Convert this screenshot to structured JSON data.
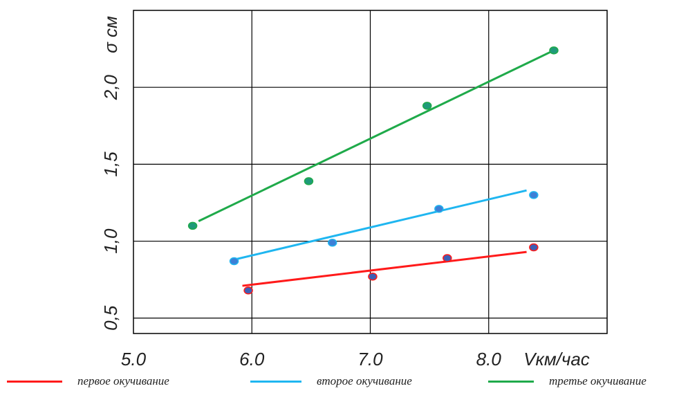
{
  "chart_data": {
    "type": "scatter",
    "title": "",
    "xlabel": "Vкм/час",
    "ylabel": "σ см",
    "xlim": [
      5.0,
      9.0
    ],
    "ylim": [
      0.4,
      2.5
    ],
    "x_ticks": [
      {
        "value": 5.0,
        "label": "5.0"
      },
      {
        "value": 6.0,
        "label": "6.0"
      },
      {
        "value": 7.0,
        "label": "7.0"
      },
      {
        "value": 8.0,
        "label": "8.0"
      }
    ],
    "y_ticks": [
      {
        "value": 0.5,
        "label": "0,5"
      },
      {
        "value": 1.0,
        "label": "1,0"
      },
      {
        "value": 1.5,
        "label": "1,5"
      },
      {
        "value": 2.0,
        "label": "2,0"
      }
    ],
    "grid": true,
    "legend_position": "bottom",
    "series": [
      {
        "name": "первое окучивание",
        "color": "#ff1a1a",
        "point_color": "#3d5fb5",
        "points": [
          [
            5.97,
            0.68
          ],
          [
            7.02,
            0.77
          ],
          [
            7.65,
            0.89
          ],
          [
            8.38,
            0.96
          ]
        ],
        "trend": [
          [
            5.92,
            0.71
          ],
          [
            8.32,
            0.93
          ]
        ]
      },
      {
        "name": "второе окучивание",
        "color": "#1fb6f0",
        "point_color": "#3d7fd6",
        "points": [
          [
            5.85,
            0.87
          ],
          [
            6.68,
            0.99
          ],
          [
            7.58,
            1.21
          ],
          [
            8.38,
            1.3
          ]
        ],
        "trend": [
          [
            5.85,
            0.88
          ],
          [
            8.32,
            1.33
          ]
        ]
      },
      {
        "name": "третье окучивание",
        "color": "#1faa4a",
        "point_color": "#1f9a7a",
        "points": [
          [
            5.5,
            1.1
          ],
          [
            6.48,
            1.39
          ],
          [
            7.48,
            1.88
          ],
          [
            8.55,
            2.24
          ]
        ],
        "trend": [
          [
            5.55,
            1.13
          ],
          [
            8.55,
            2.24
          ]
        ]
      }
    ]
  }
}
